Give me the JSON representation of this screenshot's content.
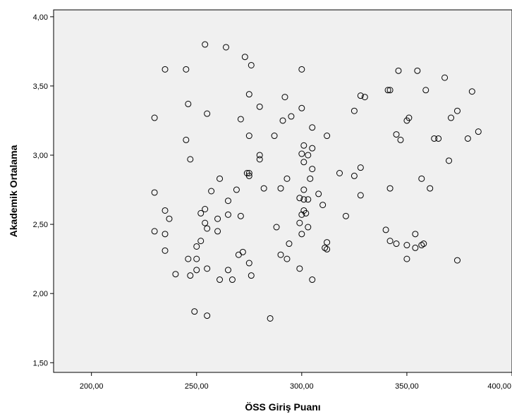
{
  "chart_data": {
    "type": "scatter",
    "title": "",
    "xlabel": "ÖSS Giriş Puanı",
    "ylabel": "Akademik Ortalama",
    "xlim": [
      182,
      400
    ],
    "ylim": [
      1.43,
      4.05
    ],
    "x_ticks": [
      200,
      250,
      300,
      350,
      400
    ],
    "y_ticks": [
      1.5,
      2.0,
      2.5,
      3.0,
      3.5,
      4.0
    ],
    "x_tick_labels": [
      "200,00",
      "250,00",
      "300,00",
      "350,00",
      "400,00"
    ],
    "y_tick_labels": [
      "1,50",
      "2,00",
      "2,50",
      "3,00",
      "3,50",
      "4,00"
    ],
    "grid": false,
    "legend": "none",
    "colors": {
      "plot_background": "#f0f0f0",
      "marker_stroke": "#000000",
      "axis": "#000000"
    },
    "points": [
      [
        254,
        3.8
      ],
      [
        264,
        3.78
      ],
      [
        273,
        3.71
      ],
      [
        276,
        3.65
      ],
      [
        235,
        3.62
      ],
      [
        245,
        3.62
      ],
      [
        300,
        3.62
      ],
      [
        346,
        3.61
      ],
      [
        355,
        3.61
      ],
      [
        368,
        3.56
      ],
      [
        342,
        3.47
      ],
      [
        341,
        3.47
      ],
      [
        359,
        3.47
      ],
      [
        381,
        3.46
      ],
      [
        292,
        3.42
      ],
      [
        328,
        3.43
      ],
      [
        330,
        3.42
      ],
      [
        275,
        3.44
      ],
      [
        246,
        3.37
      ],
      [
        280,
        3.35
      ],
      [
        300,
        3.34
      ],
      [
        325,
        3.32
      ],
      [
        255,
        3.3
      ],
      [
        374,
        3.32
      ],
      [
        350,
        3.25
      ],
      [
        351,
        3.27
      ],
      [
        371,
        3.27
      ],
      [
        230,
        3.27
      ],
      [
        271,
        3.26
      ],
      [
        291,
        3.25
      ],
      [
        295,
        3.28
      ],
      [
        305,
        3.2
      ],
      [
        384,
        3.17
      ],
      [
        345,
        3.15
      ],
      [
        347,
        3.11
      ],
      [
        363,
        3.12
      ],
      [
        365,
        3.12
      ],
      [
        379,
        3.12
      ],
      [
        275,
        3.14
      ],
      [
        287,
        3.14
      ],
      [
        312,
        3.14
      ],
      [
        245,
        3.11
      ],
      [
        301,
        3.07
      ],
      [
        305,
        3.05
      ],
      [
        280,
        3.0
      ],
      [
        280,
        2.97
      ],
      [
        300,
        3.01
      ],
      [
        303,
        3.0
      ],
      [
        301,
        2.95
      ],
      [
        247,
        2.97
      ],
      [
        370,
        2.96
      ],
      [
        328,
        2.91
      ],
      [
        305,
        2.9
      ],
      [
        274,
        2.87
      ],
      [
        275,
        2.87
      ],
      [
        318,
        2.87
      ],
      [
        325,
        2.85
      ],
      [
        275,
        2.85
      ],
      [
        261,
        2.83
      ],
      [
        293,
        2.83
      ],
      [
        304,
        2.83
      ],
      [
        357,
        2.83
      ],
      [
        282,
        2.76
      ],
      [
        290,
        2.76
      ],
      [
        301,
        2.75
      ],
      [
        342,
        2.76
      ],
      [
        361,
        2.76
      ],
      [
        269,
        2.75
      ],
      [
        257,
        2.74
      ],
      [
        230,
        2.73
      ],
      [
        308,
        2.72
      ],
      [
        328,
        2.71
      ],
      [
        299,
        2.69
      ],
      [
        301,
        2.68
      ],
      [
        303,
        2.68
      ],
      [
        265,
        2.67
      ],
      [
        310,
        2.64
      ],
      [
        235,
        2.6
      ],
      [
        254,
        2.61
      ],
      [
        301,
        2.6
      ],
      [
        302,
        2.58
      ],
      [
        300,
        2.57
      ],
      [
        252,
        2.58
      ],
      [
        237,
        2.54
      ],
      [
        260,
        2.54
      ],
      [
        265,
        2.57
      ],
      [
        271,
        2.56
      ],
      [
        321,
        2.56
      ],
      [
        254,
        2.51
      ],
      [
        299,
        2.51
      ],
      [
        255,
        2.47
      ],
      [
        230,
        2.45
      ],
      [
        235,
        2.43
      ],
      [
        260,
        2.45
      ],
      [
        303,
        2.48
      ],
      [
        288,
        2.48
      ],
      [
        340,
        2.46
      ],
      [
        354,
        2.43
      ],
      [
        300,
        2.43
      ],
      [
        252,
        2.38
      ],
      [
        250,
        2.34
      ],
      [
        294,
        2.36
      ],
      [
        312,
        2.37
      ],
      [
        311,
        2.33
      ],
      [
        312,
        2.32
      ],
      [
        342,
        2.38
      ],
      [
        345,
        2.36
      ],
      [
        350,
        2.35
      ],
      [
        354,
        2.33
      ],
      [
        357,
        2.35
      ],
      [
        358,
        2.36
      ],
      [
        235,
        2.31
      ],
      [
        272,
        2.3
      ],
      [
        270,
        2.28
      ],
      [
        290,
        2.28
      ],
      [
        246,
        2.25
      ],
      [
        250,
        2.25
      ],
      [
        293,
        2.25
      ],
      [
        275,
        2.22
      ],
      [
        350,
        2.25
      ],
      [
        374,
        2.24
      ],
      [
        250,
        2.17
      ],
      [
        255,
        2.18
      ],
      [
        265,
        2.17
      ],
      [
        240,
        2.14
      ],
      [
        247,
        2.13
      ],
      [
        276,
        2.13
      ],
      [
        261,
        2.1
      ],
      [
        267,
        2.1
      ],
      [
        299,
        2.18
      ],
      [
        305,
        2.1
      ],
      [
        249,
        1.87
      ],
      [
        255,
        1.84
      ],
      [
        285,
        1.82
      ]
    ]
  }
}
